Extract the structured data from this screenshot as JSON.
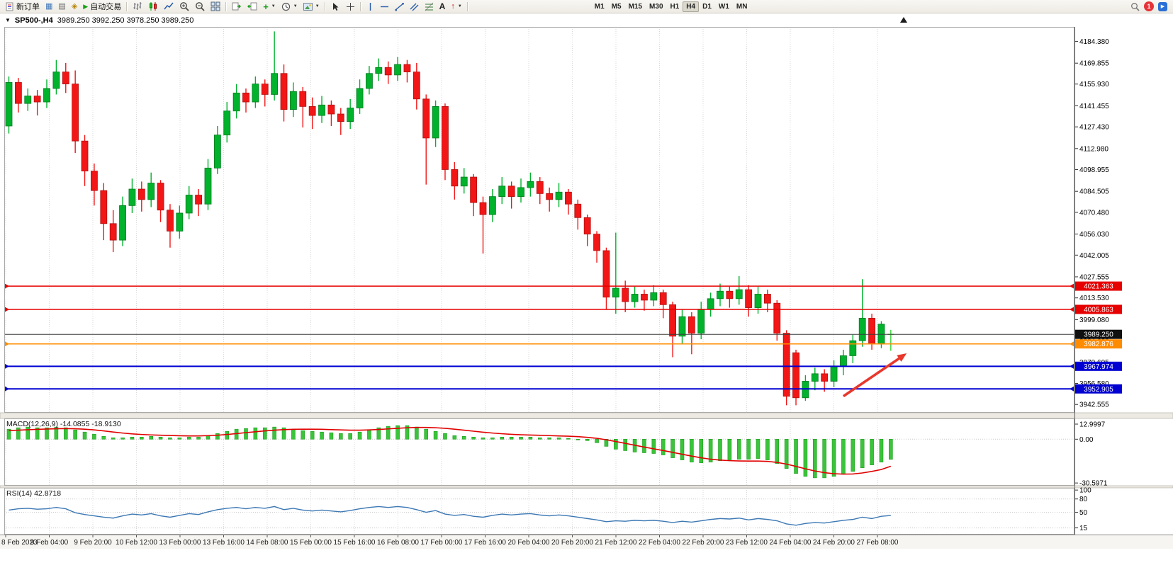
{
  "toolbar": {
    "new_order_label": "新订单",
    "autotrading_label": "自动交易",
    "timeframes": [
      "M1",
      "M5",
      "M15",
      "M30",
      "H1",
      "H4",
      "D1",
      "W1",
      "MN"
    ],
    "active_timeframe": "H4",
    "notification_count": "1",
    "text_tool_label": "A"
  },
  "chart": {
    "symbol_period": "SP500-,H4",
    "ohlc_line": "3989.250 3992.250 3978.250 3989.250"
  },
  "chart_data": [
    {
      "type": "candlestick",
      "symbol": "SP500-",
      "timeframe": "H4",
      "title": "SP500-,H4 3989.250 3992.250 3978.250 3989.250",
      "current_price": "3989.250",
      "ylim": [
        3937,
        4194
      ],
      "grid": true,
      "colors": {
        "up": "#00b22c",
        "up_stroke": "#007a1e",
        "down": "#f21616",
        "down_stroke": "#b11010",
        "doji": "#35d135",
        "background": "#ffffff"
      },
      "candles": [
        [
          4128,
          4161,
          4123,
          4157
        ],
        [
          4157,
          4160,
          4137,
          4143
        ],
        [
          4143,
          4153,
          4138,
          4148
        ],
        [
          4148,
          4152,
          4135,
          4144
        ],
        [
          4144,
          4159,
          4140,
          4153
        ],
        [
          4153,
          4172,
          4149,
          4164
        ],
        [
          4164,
          4170,
          4150,
          4156
        ],
        [
          4156,
          4165,
          4110,
          4118
        ],
        [
          4118,
          4122,
          4088,
          4098
        ],
        [
          4098,
          4103,
          4075,
          4085
        ],
        [
          4085,
          4090,
          4052,
          4063
        ],
        [
          4063,
          4072,
          4044,
          4052
        ],
        [
          4052,
          4081,
          4048,
          4075
        ],
        [
          4075,
          4093,
          4070,
          4086
        ],
        [
          4086,
          4091,
          4071,
          4079
        ],
        [
          4079,
          4097,
          4074,
          4090
        ],
        [
          4090,
          4092,
          4064,
          4072
        ],
        [
          4072,
          4076,
          4047,
          4058
        ],
        [
          4058,
          4075,
          4053,
          4070
        ],
        [
          4070,
          4088,
          4066,
          4082
        ],
        [
          4082,
          4086,
          4068,
          4076
        ],
        [
          4076,
          4106,
          4072,
          4100
        ],
        [
          4100,
          4128,
          4096,
          4122
        ],
        [
          4122,
          4144,
          4117,
          4138
        ],
        [
          4138,
          4156,
          4133,
          4150
        ],
        [
          4150,
          4153,
          4137,
          4144
        ],
        [
          4144,
          4161,
          4140,
          4156
        ],
        [
          4156,
          4159,
          4141,
          4149
        ],
        [
          4149,
          4191,
          4145,
          4163
        ],
        [
          4163,
          4169,
          4131,
          4139
        ],
        [
          4139,
          4157,
          4134,
          4151
        ],
        [
          4151,
          4154,
          4127,
          4141
        ],
        [
          4141,
          4147,
          4126,
          4135
        ],
        [
          4135,
          4148,
          4130,
          4142
        ],
        [
          4142,
          4145,
          4128,
          4136
        ],
        [
          4136,
          4140,
          4122,
          4131
        ],
        [
          4131,
          4146,
          4126,
          4140
        ],
        [
          4140,
          4159,
          4136,
          4153
        ],
        [
          4153,
          4168,
          4149,
          4163
        ],
        [
          4163,
          4173,
          4158,
          4167
        ],
        [
          4167,
          4171,
          4156,
          4162
        ],
        [
          4162,
          4174,
          4158,
          4169
        ],
        [
          4169,
          4172,
          4157,
          4164
        ],
        [
          4164,
          4170,
          4139,
          4146
        ],
        [
          4146,
          4149,
          4089,
          4120
        ],
        [
          4120,
          4145,
          4114,
          4141
        ],
        [
          4141,
          4143,
          4092,
          4099
        ],
        [
          4099,
          4104,
          4079,
          4088
        ],
        [
          4088,
          4100,
          4083,
          4094
        ],
        [
          4094,
          4096,
          4068,
          4077
        ],
        [
          4077,
          4081,
          4043,
          4069
        ],
        [
          4069,
          4086,
          4064,
          4081
        ],
        [
          4081,
          4094,
          4076,
          4088
        ],
        [
          4088,
          4091,
          4073,
          4081
        ],
        [
          4081,
          4093,
          4077,
          4087
        ],
        [
          4087,
          4097,
          4081,
          4091
        ],
        [
          4091,
          4094,
          4076,
          4083
        ],
        [
          4083,
          4087,
          4071,
          4079
        ],
        [
          4079,
          4090,
          4074,
          4084
        ],
        [
          4084,
          4086,
          4069,
          4076
        ],
        [
          4076,
          4079,
          4059,
          4067
        ],
        [
          4067,
          4069,
          4048,
          4056
        ],
        [
          4056,
          4058,
          4037,
          4045
        ],
        [
          4045,
          4047,
          4006,
          4014
        ],
        [
          4014,
          4057,
          4003,
          4020
        ],
        [
          4020,
          4025,
          4004,
          4011
        ],
        [
          4011,
          4021,
          4007,
          4016
        ],
        [
          4016,
          4019,
          4005,
          4012
        ],
        [
          4012,
          4022,
          4008,
          4017
        ],
        [
          4017,
          4019,
          4000,
          4009
        ],
        [
          4009,
          4011,
          3974,
          3988
        ],
        [
          3988,
          4006,
          3983,
          4001
        ],
        [
          4001,
          4004,
          3976,
          3990
        ],
        [
          3990,
          4011,
          3986,
          4006
        ],
        [
          4006,
          4017,
          4001,
          4013
        ],
        [
          4013,
          4023,
          4008,
          4018
        ],
        [
          4018,
          4021,
          4007,
          4013
        ],
        [
          4013,
          4028,
          4009,
          4019
        ],
        [
          4019,
          4022,
          4001,
          4007
        ],
        [
          4007,
          4021,
          4003,
          4016
        ],
        [
          4016,
          4019,
          4004,
          4010
        ],
        [
          4010,
          4012,
          3985,
          3990
        ],
        [
          3990,
          3992,
          3942,
          3948
        ],
        [
          3977,
          3979,
          3942,
          3947
        ],
        [
          3947,
          3962,
          3945,
          3958
        ],
        [
          3958,
          3967,
          3952,
          3963
        ],
        [
          3963,
          3966,
          3951,
          3958
        ],
        [
          3958,
          3972,
          3954,
          3968
        ],
        [
          3968,
          3979,
          3962,
          3975
        ],
        [
          3975,
          3989,
          3970,
          3985
        ],
        [
          3985,
          4026,
          3981,
          4000
        ],
        [
          4000,
          4003,
          3979,
          3983
        ],
        [
          3983,
          3998,
          3980,
          3996
        ],
        [
          3989.25,
          3992.25,
          3978.25,
          3989.25
        ]
      ],
      "hlines": [
        {
          "label": "4021.363",
          "color": "#e60000",
          "lw": 1.5,
          "markers": true
        },
        {
          "label": "4005.863",
          "color": "#e60000",
          "lw": 1.5,
          "markers": true
        },
        {
          "label": "3989.250",
          "color": "#3c3c3c",
          "badge": "#101010",
          "lw": 1,
          "markers": false,
          "role": "current-bid"
        },
        {
          "label": "3982.876",
          "color": "#ff8c00",
          "lw": 1.5,
          "markers": true
        },
        {
          "label": "3967.974",
          "color": "#0000d2",
          "lw": 2,
          "markers": true
        },
        {
          "label": "3952.905",
          "color": "#0000d2",
          "lw": 2,
          "markers": true
        }
      ],
      "price_axis_ticks": [
        "4184.380",
        "4169.855",
        "4155.930",
        "4141.455",
        "4127.430",
        "4112.980",
        "4098.955",
        "4084.505",
        "4070.480",
        "4056.030",
        "4042.005",
        "4027.555",
        "4013.530",
        "3999.080",
        "3984.630",
        "3970.605",
        "3956.580",
        "3942.555"
      ],
      "time_labels": [
        "8 Feb 2023",
        "9 Feb 04:00",
        "9 Feb 20:00",
        "10 Feb 12:00",
        "13 Feb 00:00",
        "13 Feb 16:00",
        "14 Feb 08:00",
        "15 Feb 00:00",
        "15 Feb 16:00",
        "16 Feb 08:00",
        "17 Feb 00:00",
        "17 Feb 16:00",
        "20 Feb 04:00",
        "20 Feb 20:00",
        "21 Feb 12:00",
        "22 Feb 04:00",
        "22 Feb 20:00",
        "23 Feb 12:00",
        "24 Feb 04:00",
        "24 Feb 20:00",
        "27 Feb 08:00"
      ],
      "arrow": {
        "from_bar": 88,
        "from_price": "3948",
        "to_bar": 94.3,
        "to_price": "3975",
        "color": "#e8372c"
      }
    },
    {
      "type": "bar",
      "label": "MACD(12,26,9)",
      "value_main": "-14.0855",
      "value_signal": "-18.9130",
      "ylim": [
        -32.5,
        14.5
      ],
      "axis": [
        {
          "label": "12.9997"
        },
        {
          "label": "0.00"
        },
        {
          "label": "-30.5971"
        }
      ],
      "colors": {
        "histogram": "#3bc43b",
        "histogram_stroke": "#1e9e1e",
        "signal": "#e00000"
      },
      "histogram": [
        7,
        8,
        8.5,
        8,
        8,
        8.5,
        8,
        6.5,
        5,
        3.5,
        2,
        1,
        1,
        1.5,
        1.5,
        2,
        1.5,
        1,
        1,
        1.5,
        1.5,
        2.5,
        4,
        5.5,
        7,
        7.5,
        8,
        8,
        8.5,
        8,
        7,
        6,
        5.5,
        5,
        4.5,
        4,
        4,
        5,
        6.5,
        8,
        9,
        9.5,
        9.5,
        8.5,
        7,
        5.5,
        4,
        2.5,
        2,
        1.5,
        1,
        1,
        1.5,
        1.5,
        1.5,
        1.5,
        1,
        1,
        1,
        0.5,
        0,
        -1,
        -2.5,
        -5,
        -7,
        -8,
        -9,
        -9.5,
        -10,
        -11,
        -13,
        -14.5,
        -16,
        -16.5,
        -16,
        -15,
        -14.5,
        -14,
        -14,
        -13.5,
        -14.5,
        -17,
        -20.5,
        -24,
        -26,
        -27,
        -27,
        -26,
        -24.5,
        -22.5,
        -20,
        -18,
        -16,
        -14.1
      ],
      "signal": [
        6,
        6.3,
        6.6,
        6.9,
        7.1,
        7.3,
        7.4,
        7.3,
        7,
        6.5,
        5.8,
        5,
        4.3,
        3.7,
        3.3,
        3,
        2.8,
        2.6,
        2.4,
        2.3,
        2.3,
        2.5,
        2.8,
        3.3,
        3.9,
        4.6,
        5.2,
        5.8,
        6.3,
        6.7,
        6.9,
        7,
        7,
        6.9,
        6.7,
        6.5,
        6.3,
        6.3,
        6.5,
        6.8,
        7.2,
        7.6,
        8,
        8.2,
        8.2,
        8,
        7.6,
        7,
        6.3,
        5.6,
        4.9,
        4.3,
        3.8,
        3.4,
        3.1,
        2.9,
        2.7,
        2.5,
        2.3,
        2.1,
        1.8,
        1.3,
        0.6,
        -0.4,
        -1.6,
        -2.9,
        -4.2,
        -5.5,
        -6.7,
        -7.9,
        -9.2,
        -10.5,
        -11.8,
        -13,
        -14,
        -14.6,
        -15,
        -15.2,
        -15.3,
        -15.3,
        -15.5,
        -16.2,
        -17.4,
        -19,
        -20.7,
        -22.2,
        -23.4,
        -24.1,
        -24.4,
        -24.3,
        -23.6,
        -22.5,
        -21.2,
        -18.9
      ]
    },
    {
      "type": "line",
      "label": "RSI(14)",
      "value": "42.8718",
      "ylim": [
        0,
        105
      ],
      "axis": [
        {
          "label": "100"
        },
        {
          "label": "80"
        },
        {
          "label": "50"
        },
        {
          "label": "15"
        }
      ],
      "colors": {
        "line": "#3c78b4"
      },
      "values": [
        55,
        58,
        59,
        57,
        58,
        61,
        58,
        49,
        45,
        42,
        39,
        37,
        42,
        46,
        44,
        47,
        42,
        39,
        43,
        47,
        45,
        51,
        56,
        59,
        61,
        58,
        61,
        59,
        63,
        56,
        59,
        55,
        53,
        55,
        53,
        51,
        54,
        58,
        61,
        63,
        61,
        63,
        61,
        56,
        50,
        54,
        46,
        43,
        45,
        41,
        39,
        43,
        46,
        44,
        46,
        47,
        44,
        42,
        44,
        42,
        39,
        36,
        33,
        29,
        31,
        30,
        32,
        31,
        32,
        30,
        27,
        30,
        28,
        31,
        34,
        36,
        35,
        37,
        33,
        36,
        34,
        31,
        24,
        21,
        25,
        27,
        26,
        29,
        32,
        34,
        39,
        36,
        41,
        42.87
      ]
    }
  ]
}
